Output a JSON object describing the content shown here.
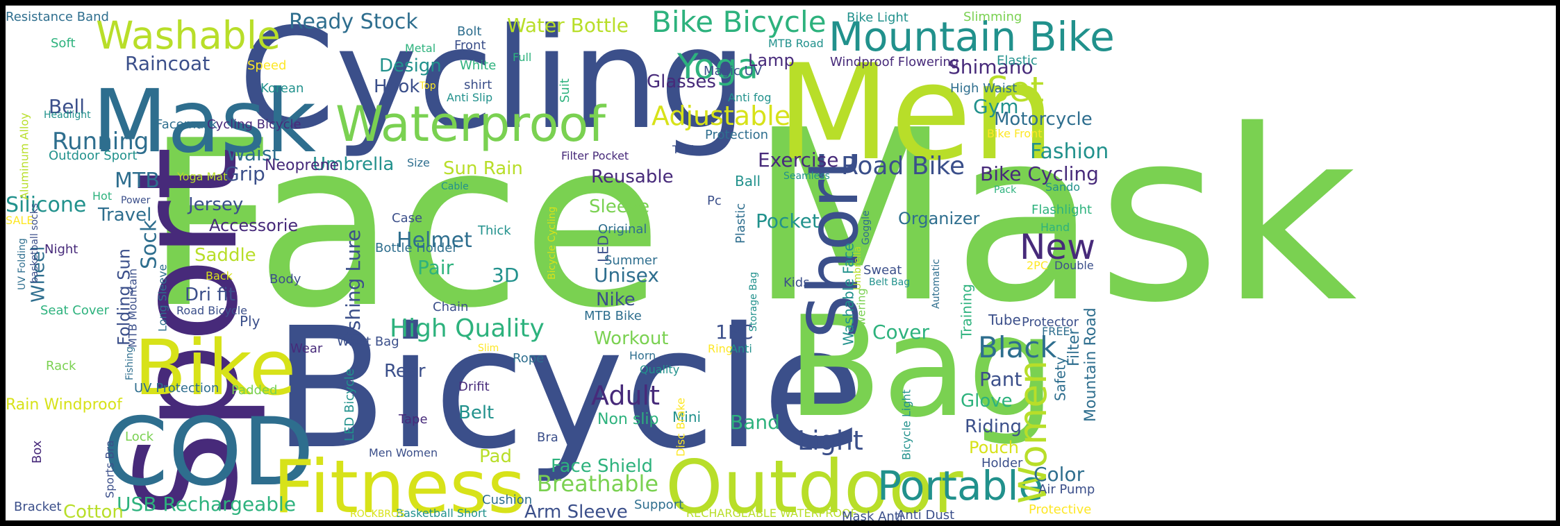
{
  "word_cloud": {
    "background": "#ffffff",
    "border": "#000000",
    "palette": {
      "dark_purple": "#472a7a",
      "indigo": "#3b4f8a",
      "steel_blue": "#2e6e8e",
      "teal": "#21918c",
      "green_teal": "#2db27d",
      "green": "#7ad151",
      "lime": "#b8de29",
      "yellow": "#fde725"
    },
    "words": [
      {
        "text": "Face",
        "color": "#7ad151"
      },
      {
        "text": "Mask",
        "color": "#7ad151"
      },
      {
        "text": "Bicycle",
        "color": "#3b4f8a"
      },
      {
        "text": "Cycling",
        "color": "#3b4f8a"
      },
      {
        "text": "Sport",
        "color": "#472a7a"
      },
      {
        "text": "Men",
        "color": "#b8de29"
      },
      {
        "text": "Bag",
        "color": "#7ad151"
      },
      {
        "text": "COD",
        "color": "#2e6e8e"
      },
      {
        "text": "Mask",
        "color": "#2e6e8e"
      },
      {
        "text": "Bike",
        "color": "#d7e219"
      },
      {
        "text": "Outdoor",
        "color": "#b8de29"
      },
      {
        "text": "Fitness",
        "color": "#d7e219"
      },
      {
        "text": "Short",
        "color": "#3b4f8a"
      },
      {
        "text": "Waterproof",
        "color": "#7ad151"
      },
      {
        "text": "Mountain Bike",
        "color": "#21918c"
      },
      {
        "text": "Washable",
        "color": "#b8de29"
      },
      {
        "text": "Portable",
        "color": "#21918c"
      },
      {
        "text": "Bike Bicycle",
        "color": "#2db27d"
      },
      {
        "text": "Yoga",
        "color": "#2db27d"
      },
      {
        "text": "Set",
        "color": "#b8de29"
      },
      {
        "text": "New",
        "color": "#472a7a"
      },
      {
        "text": "Women",
        "color": "#b8de29"
      },
      {
        "text": "Black",
        "color": "#2e6e8e"
      },
      {
        "text": "Adjustable",
        "color": "#d7e219"
      },
      {
        "text": "Road Bike",
        "color": "#3b4f8a"
      },
      {
        "text": "High Quality",
        "color": "#2db27d"
      },
      {
        "text": "Ready Stock",
        "color": "#2e6e8e"
      },
      {
        "text": "Water Bottle",
        "color": "#b8de29"
      },
      {
        "text": "Running",
        "color": "#2e6e8e"
      },
      {
        "text": "Raincoat",
        "color": "#3b4f8a"
      },
      {
        "text": "Helmet",
        "color": "#2e6e8e"
      },
      {
        "text": "Light",
        "color": "#3b4f8a"
      },
      {
        "text": "Adult",
        "color": "#472a7a"
      },
      {
        "text": "Breathable",
        "color": "#7ad151"
      },
      {
        "text": "USB Rechargeable",
        "color": "#2db27d"
      },
      {
        "text": "Fishing Lure",
        "color": "#3b4f8a"
      },
      {
        "text": "Rain Windproof",
        "color": "#d7e219"
      },
      {
        "text": "Silicone",
        "color": "#21918c"
      },
      {
        "text": "Bell",
        "color": "#3b4f8a"
      },
      {
        "text": "Grip",
        "color": "#3b4f8a"
      },
      {
        "text": "Waist",
        "color": "#2e6e8e"
      },
      {
        "text": "Umbrella",
        "color": "#21918c"
      },
      {
        "text": "Exercise",
        "color": "#472a7a"
      },
      {
        "text": "Fashion",
        "color": "#21918c"
      },
      {
        "text": "Bike Cycling",
        "color": "#472a7a"
      },
      {
        "text": "Motorcycle",
        "color": "#2e6e8e"
      },
      {
        "text": "Gym",
        "color": "#21918c"
      },
      {
        "text": "Shimano",
        "color": "#472a7a"
      },
      {
        "text": "Glasses",
        "color": "#472a7a"
      },
      {
        "text": "Lamp",
        "color": "#472a7a"
      },
      {
        "text": "Hook",
        "color": "#3b4f8a"
      },
      {
        "text": "Design",
        "color": "#21918c"
      },
      {
        "text": "Sun Rain",
        "color": "#b8de29"
      },
      {
        "text": "Reusable",
        "color": "#472a7a"
      },
      {
        "text": "Sleeve",
        "color": "#7ad151"
      },
      {
        "text": "Pocket",
        "color": "#21918c"
      },
      {
        "text": "Organizer",
        "color": "#2e6e8e"
      },
      {
        "text": "Travel",
        "color": "#2e6e8e"
      },
      {
        "text": "Jersey",
        "color": "#3b4f8a"
      },
      {
        "text": "Saddle",
        "color": "#b8de29"
      },
      {
        "text": "Sock",
        "color": "#2e6e8e"
      },
      {
        "text": "MTB",
        "color": "#2e6e8e"
      },
      {
        "text": "Pair",
        "color": "#2db27d"
      },
      {
        "text": "3D",
        "color": "#21918c"
      },
      {
        "text": "Unisex",
        "color": "#2e6e8e"
      },
      {
        "text": "Nike",
        "color": "#3b4f8a"
      },
      {
        "text": "Workout",
        "color": "#7ad151"
      },
      {
        "text": "1PC",
        "color": "#3b4f8a"
      },
      {
        "text": "Cover",
        "color": "#2db27d"
      },
      {
        "text": "Pant",
        "color": "#3b4f8a"
      },
      {
        "text": "Glove",
        "color": "#2db27d"
      },
      {
        "text": "Riding",
        "color": "#3b4f8a"
      },
      {
        "text": "Pouch",
        "color": "#d7e219"
      },
      {
        "text": "Color",
        "color": "#2e6e8e"
      },
      {
        "text": "Belt",
        "color": "#21918c"
      },
      {
        "text": "Rear",
        "color": "#3b4f8a"
      },
      {
        "text": "Band",
        "color": "#2db27d"
      },
      {
        "text": "Face Shield",
        "color": "#2db27d"
      },
      {
        "text": "Arm Sleeve",
        "color": "#3b4f8a"
      },
      {
        "text": "Cotton",
        "color": "#b8de29"
      },
      {
        "text": "Pad",
        "color": "#b8de29"
      },
      {
        "text": "Dri fit",
        "color": "#3b4f8a"
      },
      {
        "text": "Wheel",
        "color": "#2e6e8e"
      },
      {
        "text": "Accessorie",
        "color": "#472a7a"
      },
      {
        "text": "Neoprene",
        "color": "#472a7a"
      },
      {
        "text": "Soft",
        "color": "#2db27d"
      },
      {
        "text": "Speed",
        "color": "#fde725"
      },
      {
        "text": "Korean",
        "color": "#21918c"
      },
      {
        "text": "Metal",
        "color": "#2db27d"
      },
      {
        "text": "Bolt",
        "color": "#2e6e8e"
      },
      {
        "text": "Front",
        "color": "#3b4f8a"
      },
      {
        "text": "White",
        "color": "#2db27d"
      },
      {
        "text": "shirt",
        "color": "#3b4f8a"
      },
      {
        "text": "Top",
        "color": "#fde725"
      },
      {
        "text": "Anti Slip",
        "color": "#21918c"
      },
      {
        "text": "Full",
        "color": "#2db27d"
      },
      {
        "text": "Suit",
        "color": "#2db27d"
      },
      {
        "text": "Magic UV",
        "color": "#3b4f8a"
      },
      {
        "text": "MTB Road",
        "color": "#21918c"
      },
      {
        "text": "Windproof Flowering",
        "color": "#472a7a"
      },
      {
        "text": "Anti fog",
        "color": "#21918c"
      },
      {
        "text": "High Waist",
        "color": "#2e6e8e"
      },
      {
        "text": "Elastic",
        "color": "#21918c"
      },
      {
        "text": "Bike Light",
        "color": "#21918c"
      },
      {
        "text": "Slimming",
        "color": "#7ad151"
      },
      {
        "text": "Protection",
        "color": "#2e6e8e"
      },
      {
        "text": "Tool",
        "color": "#3b4f8a"
      },
      {
        "text": "Filter Pocket",
        "color": "#472a7a"
      },
      {
        "text": "Seamless",
        "color": "#21918c"
      },
      {
        "text": "Ball",
        "color": "#21918c"
      },
      {
        "text": "Pc",
        "color": "#3b4f8a"
      },
      {
        "text": "Plastic",
        "color": "#2e6e8e"
      },
      {
        "text": "Original",
        "color": "#2e6e8e"
      },
      {
        "text": "LED",
        "color": "#3b4f8a"
      },
      {
        "text": "Summer",
        "color": "#2e6e8e"
      },
      {
        "text": "Thick",
        "color": "#21918c"
      },
      {
        "text": "Case",
        "color": "#3b4f8a"
      },
      {
        "text": "Bottle Holder",
        "color": "#2e6e8e"
      },
      {
        "text": "Chain",
        "color": "#3b4f8a"
      },
      {
        "text": "Cable",
        "color": "#21918c"
      },
      {
        "text": "Size",
        "color": "#2e6e8e"
      },
      {
        "text": "Facemask",
        "color": "#2e6e8e"
      },
      {
        "text": "Cycling Bicycle",
        "color": "#472a7a"
      },
      {
        "text": "Outdoor Sport",
        "color": "#21918c"
      },
      {
        "text": "Headlight",
        "color": "#21918c"
      },
      {
        "text": "Resistance Band",
        "color": "#2e6e8e"
      },
      {
        "text": "Aluminum Alloy",
        "color": "#b8de29"
      },
      {
        "text": "SALE",
        "color": "#fde725"
      },
      {
        "text": "Night",
        "color": "#472a7a"
      },
      {
        "text": "Power",
        "color": "#3b4f8a"
      },
      {
        "text": "Hot",
        "color": "#2db27d"
      },
      {
        "text": "Yoga Mat",
        "color": "#b8de29"
      },
      {
        "text": "Folding Sun",
        "color": "#3b4f8a"
      },
      {
        "text": "MTB Mountain",
        "color": "#3b4f8a"
      },
      {
        "text": "Long Sleeve",
        "color": "#2e6e8e"
      },
      {
        "text": "Back",
        "color": "#d7e219"
      },
      {
        "text": "Body",
        "color": "#3b4f8a"
      },
      {
        "text": "Road Bicycle",
        "color": "#3b4f8a"
      },
      {
        "text": "Ply",
        "color": "#3b4f8a"
      },
      {
        "text": "Padded",
        "color": "#7ad151"
      },
      {
        "text": "UV Protection",
        "color": "#2e6e8e"
      },
      {
        "text": "Seat Cover",
        "color": "#2db27d"
      },
      {
        "text": "basketball socks",
        "color": "#3b4f8a"
      },
      {
        "text": "UV Folding",
        "color": "#2e6e8e"
      },
      {
        "text": "Rack",
        "color": "#7ad151"
      },
      {
        "text": "Fishing",
        "color": "#2e6e8e"
      },
      {
        "text": "Lock",
        "color": "#7ad151"
      },
      {
        "text": "Box",
        "color": "#472a7a"
      },
      {
        "text": "Sports Bra",
        "color": "#3b4f8a"
      },
      {
        "text": "Bracket",
        "color": "#3b4f8a"
      },
      {
        "text": "Wear",
        "color": "#472a7a"
      },
      {
        "text": "Waist Bag",
        "color": "#3b4f8a"
      },
      {
        "text": "LED Bicycle",
        "color": "#21918c"
      },
      {
        "text": "Tape",
        "color": "#472a7a"
      },
      {
        "text": "Men Women",
        "color": "#3b4f8a"
      },
      {
        "text": "Drifit",
        "color": "#472a7a"
      },
      {
        "text": "Slim",
        "color": "#fde725"
      },
      {
        "text": "Rope",
        "color": "#2e6e8e"
      },
      {
        "text": "Bra",
        "color": "#3b4f8a"
      },
      {
        "text": "Cushion",
        "color": "#2e6e8e"
      },
      {
        "text": "Basketball Short",
        "color": "#21918c"
      },
      {
        "text": "ROCKBROS",
        "color": "#d7e219"
      },
      {
        "text": "Support",
        "color": "#2e6e8e"
      },
      {
        "text": "Non slip",
        "color": "#2db27d"
      },
      {
        "text": "MTB Bike",
        "color": "#2e6e8e"
      },
      {
        "text": "Horn",
        "color": "#2e6e8e"
      },
      {
        "text": "Quality",
        "color": "#21918c"
      },
      {
        "text": "Mini",
        "color": "#21918c"
      },
      {
        "text": "Disc Brake",
        "color": "#fde725"
      },
      {
        "text": "Ring",
        "color": "#fde725"
      },
      {
        "text": "Anti",
        "color": "#21918c"
      },
      {
        "text": "Storage Bag",
        "color": "#21918c"
      },
      {
        "text": "Washable Face",
        "color": "#21918c"
      },
      {
        "text": "Flowering",
        "color": "#7ad151"
      },
      {
        "text": "Umbrella",
        "color": "#b8de29"
      },
      {
        "text": "Goggle",
        "color": "#2e6e8e"
      },
      {
        "text": "Kids",
        "color": "#3b4f8a"
      },
      {
        "text": "Sweat",
        "color": "#3b4f8a"
      },
      {
        "text": "Belt Bag",
        "color": "#21918c"
      },
      {
        "text": "Automatic",
        "color": "#2e6e8e"
      },
      {
        "text": "Training",
        "color": "#2db27d"
      },
      {
        "text": "Bicycle Light",
        "color": "#21918c"
      },
      {
        "text": "RECHARGEABLE WATERPROOF",
        "color": "#b8de29"
      },
      {
        "text": "Mask Anti",
        "color": "#3b4f8a"
      },
      {
        "text": "Anti Dust",
        "color": "#3b4f8a"
      },
      {
        "text": "Holder",
        "color": "#3b4f8a"
      },
      {
        "text": "Safety",
        "color": "#2e6e8e"
      },
      {
        "text": "Filter",
        "color": "#2e6e8e"
      },
      {
        "text": "Mountain Road",
        "color": "#2e6e8e"
      },
      {
        "text": "Tube",
        "color": "#3b4f8a"
      },
      {
        "text": "Protector",
        "color": "#3b4f8a"
      },
      {
        "text": "FREE",
        "color": "#2e6e8e"
      },
      {
        "text": "2PC",
        "color": "#fde725"
      },
      {
        "text": "Double",
        "color": "#3b4f8a"
      },
      {
        "text": "Air Pump",
        "color": "#3b4f8a"
      },
      {
        "text": "Protective",
        "color": "#fde725"
      },
      {
        "text": "Hand",
        "color": "#2db27d"
      },
      {
        "text": "Flashlight",
        "color": "#2db27d"
      },
      {
        "text": "Sando",
        "color": "#21918c"
      },
      {
        "text": "Pack",
        "color": "#2db27d"
      },
      {
        "text": "Bike Front",
        "color": "#fde725"
      },
      {
        "text": "Bicycle Cycling",
        "color": "#d7e219"
      }
    ]
  }
}
